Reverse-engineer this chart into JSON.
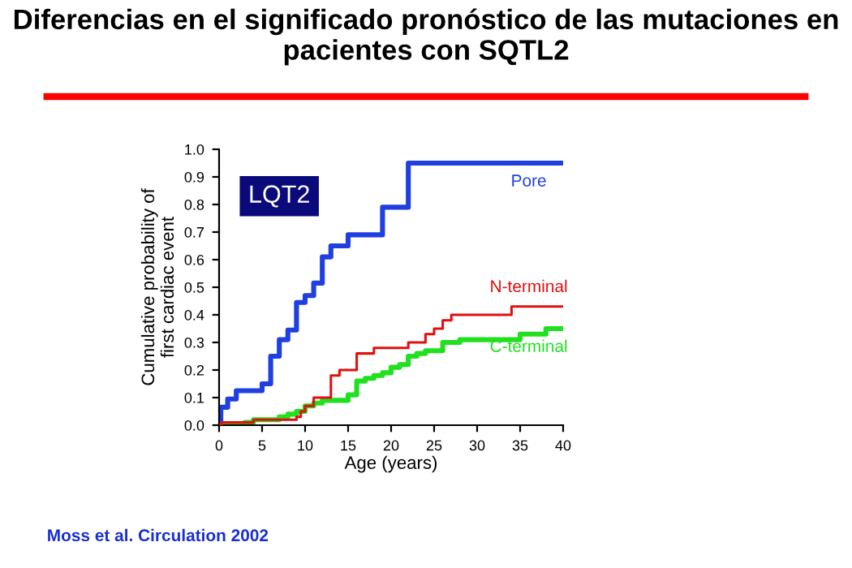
{
  "chart_data": {
    "type": "step",
    "title": "Diferencias en el significado pronóstico de las mutaciones en pacientes con SQTL2",
    "xlabel": "Age (years)",
    "ylabel": "Cumulative probability of\nfirst cardiac event",
    "annotations": [
      "LQT2",
      "Moss et al. Circulation 2002"
    ],
    "series": [
      {
        "name": "Pore",
        "color": "#1f3fe0",
        "x": [
          0,
          0.2,
          1,
          2,
          5,
          6,
          7,
          8,
          9,
          10,
          11,
          12,
          13,
          15,
          19,
          22,
          40
        ],
        "values": [
          0,
          0.065,
          0.095,
          0.125,
          0.15,
          0.25,
          0.31,
          0.345,
          0.445,
          0.47,
          0.515,
          0.61,
          0.65,
          0.69,
          0.79,
          0.95,
          0.95
        ]
      },
      {
        "name": "N-terminal",
        "color": "#e01010",
        "x": [
          0,
          0.3,
          4,
          9,
          9.5,
          10,
          11,
          13,
          14,
          16,
          18,
          22,
          24,
          25,
          26,
          27,
          34,
          40
        ],
        "values": [
          0,
          0.01,
          0.02,
          0.03,
          0.05,
          0.07,
          0.1,
          0.18,
          0.2,
          0.26,
          0.28,
          0.3,
          0.33,
          0.35,
          0.38,
          0.4,
          0.43,
          0.43
        ]
      },
      {
        "name": "C-terminal",
        "color": "#20e020",
        "x": [
          0,
          3,
          4,
          7,
          8,
          9,
          10,
          11,
          12,
          15,
          16,
          17,
          18,
          19,
          20,
          21,
          22,
          23,
          24,
          26,
          28,
          35,
          38,
          40
        ],
        "values": [
          0,
          0.01,
          0.02,
          0.03,
          0.04,
          0.05,
          0.07,
          0.08,
          0.09,
          0.11,
          0.16,
          0.17,
          0.18,
          0.19,
          0.21,
          0.22,
          0.25,
          0.26,
          0.27,
          0.3,
          0.31,
          0.33,
          0.35,
          0.35
        ]
      }
    ],
    "xlim": [
      0,
      40
    ],
    "xticks": [
      0,
      5,
      10,
      15,
      20,
      25,
      30,
      35,
      40
    ],
    "ylim": [
      0,
      1
    ],
    "yticks": [
      {
        "value": 0,
        "label": "0.0"
      },
      0.1,
      0.2,
      0.3,
      0.4,
      0.5,
      0.6,
      0.7,
      0.8,
      0.9,
      {
        "value": 1,
        "label": "1.0"
      }
    ],
    "grid": false,
    "legend": false
  }
}
